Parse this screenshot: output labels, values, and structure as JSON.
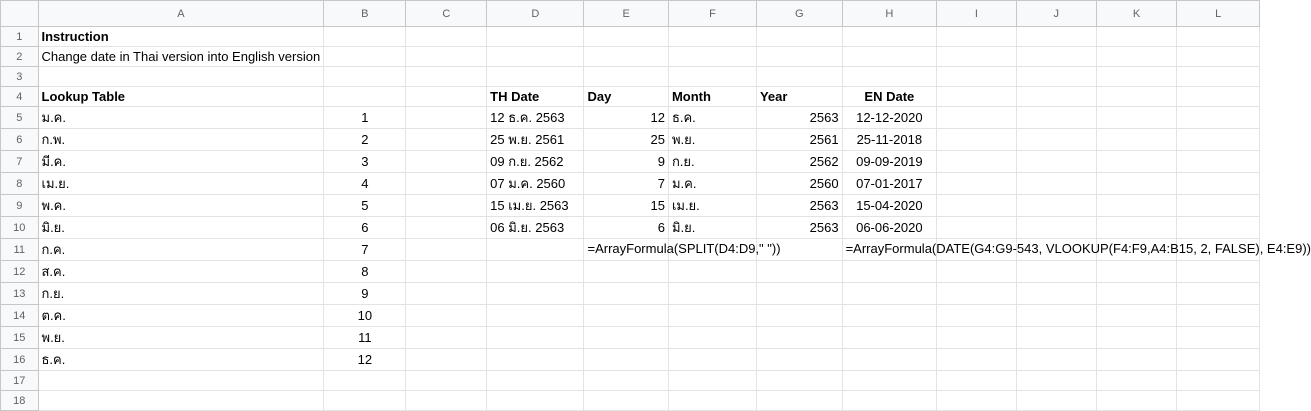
{
  "columns": [
    "A",
    "B",
    "C",
    "D",
    "E",
    "F",
    "G",
    "H",
    "I",
    "J",
    "K",
    "L"
  ],
  "rows": [
    {
      "n": "1",
      "a": "Instruction",
      "b": "",
      "d": "",
      "e": "",
      "f": "",
      "g": "",
      "h": ""
    },
    {
      "n": "2",
      "a": "Change date in Thai version into English version",
      "b": "",
      "d": "",
      "e": "",
      "f": "",
      "g": "",
      "h": ""
    },
    {
      "n": "3",
      "a": "",
      "b": "",
      "d": "",
      "e": "",
      "f": "",
      "g": "",
      "h": ""
    },
    {
      "n": "4",
      "a": "Lookup Table",
      "b": "",
      "d": "TH Date",
      "e": "Day",
      "f": "Month",
      "g": "Year",
      "h": "EN Date"
    },
    {
      "n": "5",
      "a": "ม.ค.",
      "b": "1",
      "d": "12 ธ.ค. 2563",
      "e": "12",
      "f": "ธ.ค.",
      "g": "2563",
      "h": "12-12-2020"
    },
    {
      "n": "6",
      "a": "ก.พ.",
      "b": "2",
      "d": "25 พ.ย. 2561",
      "e": "25",
      "f": "พ.ย.",
      "g": "2561",
      "h": "25-11-2018"
    },
    {
      "n": "7",
      "a": "มี.ค.",
      "b": "3",
      "d": "09 ก.ย. 2562",
      "e": "9",
      "f": "ก.ย.",
      "g": "2562",
      "h": "09-09-2019"
    },
    {
      "n": "8",
      "a": "เม.ย.",
      "b": "4",
      "d": "07 ม.ค. 2560",
      "e": "7",
      "f": "ม.ค.",
      "g": "2560",
      "h": "07-01-2017"
    },
    {
      "n": "9",
      "a": "พ.ค.",
      "b": "5",
      "d": "15 เม.ย. 2563",
      "e": "15",
      "f": "เม.ย.",
      "g": "2563",
      "h": "15-04-2020"
    },
    {
      "n": "10",
      "a": "มิ.ย.",
      "b": "6",
      "d": "06 มิ.ย. 2563",
      "e": "6",
      "f": "มิ.ย.",
      "g": "2563",
      "h": "06-06-2020"
    },
    {
      "n": "11",
      "a": "ก.ค.",
      "b": "7",
      "d": "",
      "e": "=ArrayFormula(SPLIT(D4:D9,\" \"))",
      "f": "",
      "g": "",
      "h": "=ArrayFormula(DATE(G4:G9-543, VLOOKUP(F4:F9,A4:B15, 2, FALSE), E4:E9))"
    },
    {
      "n": "12",
      "a": "ส.ค.",
      "b": "8",
      "d": "",
      "e": "",
      "f": "",
      "g": "",
      "h": ""
    },
    {
      "n": "13",
      "a": "ก.ย.",
      "b": "9",
      "d": "",
      "e": "",
      "f": "",
      "g": "",
      "h": ""
    },
    {
      "n": "14",
      "a": "ต.ค.",
      "b": "10",
      "d": "",
      "e": "",
      "f": "",
      "g": "",
      "h": ""
    },
    {
      "n": "15",
      "a": "พ.ย.",
      "b": "11",
      "d": "",
      "e": "",
      "f": "",
      "g": "",
      "h": ""
    },
    {
      "n": "16",
      "a": "ธ.ค.",
      "b": "12",
      "d": "",
      "e": "",
      "f": "",
      "g": "",
      "h": ""
    },
    {
      "n": "17",
      "a": "",
      "b": "",
      "d": "",
      "e": "",
      "f": "",
      "g": "",
      "h": ""
    },
    {
      "n": "18",
      "a": "",
      "b": "",
      "d": "",
      "e": "",
      "f": "",
      "g": "",
      "h": ""
    }
  ],
  "colors": {
    "formula": "#e8413b",
    "header_bg": "#f8f9fa",
    "grid": "#e2e3e3"
  }
}
